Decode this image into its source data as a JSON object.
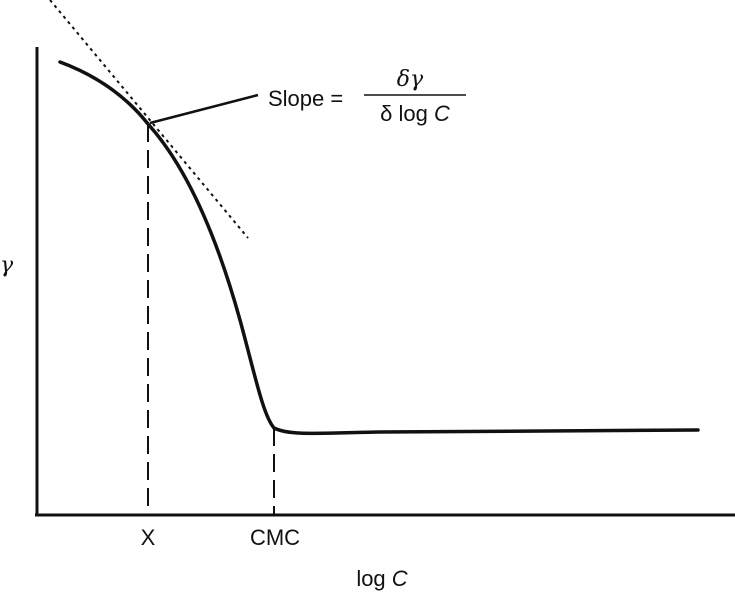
{
  "chart_data": {
    "type": "line",
    "title": "",
    "xlabel": {
      "prefix": "log ",
      "var": "C"
    },
    "ylabel": "γ",
    "x_ticks": [
      {
        "label": "X",
        "x": 1.0
      },
      {
        "label": "CMC",
        "x": 2.0
      }
    ],
    "xlim": [
      0,
      5
    ],
    "ylim": [
      0,
      1
    ],
    "series": [
      {
        "points": [
          [
            0.2,
            0.96
          ],
          [
            0.6,
            0.91
          ],
          [
            1.0,
            0.83
          ],
          [
            1.3,
            0.73
          ],
          [
            1.55,
            0.57
          ],
          [
            1.75,
            0.36
          ],
          [
            1.88,
            0.2
          ],
          [
            2.0,
            0.18
          ],
          [
            2.3,
            0.17
          ],
          [
            3.5,
            0.175
          ],
          [
            5.0,
            0.18
          ]
        ]
      }
    ],
    "tangent": {
      "at_x": 1.0,
      "style": "dotted"
    },
    "annotation": {
      "prefix": "Slope = ",
      "numerator": "δγ",
      "denominator_prefix": "δ log ",
      "denominator_var": "C"
    },
    "drop_lines": {
      "at": [
        "X",
        "CMC"
      ],
      "style": "dashed"
    },
    "colors": {
      "line": "#111111",
      "background": "#ffffff"
    }
  }
}
